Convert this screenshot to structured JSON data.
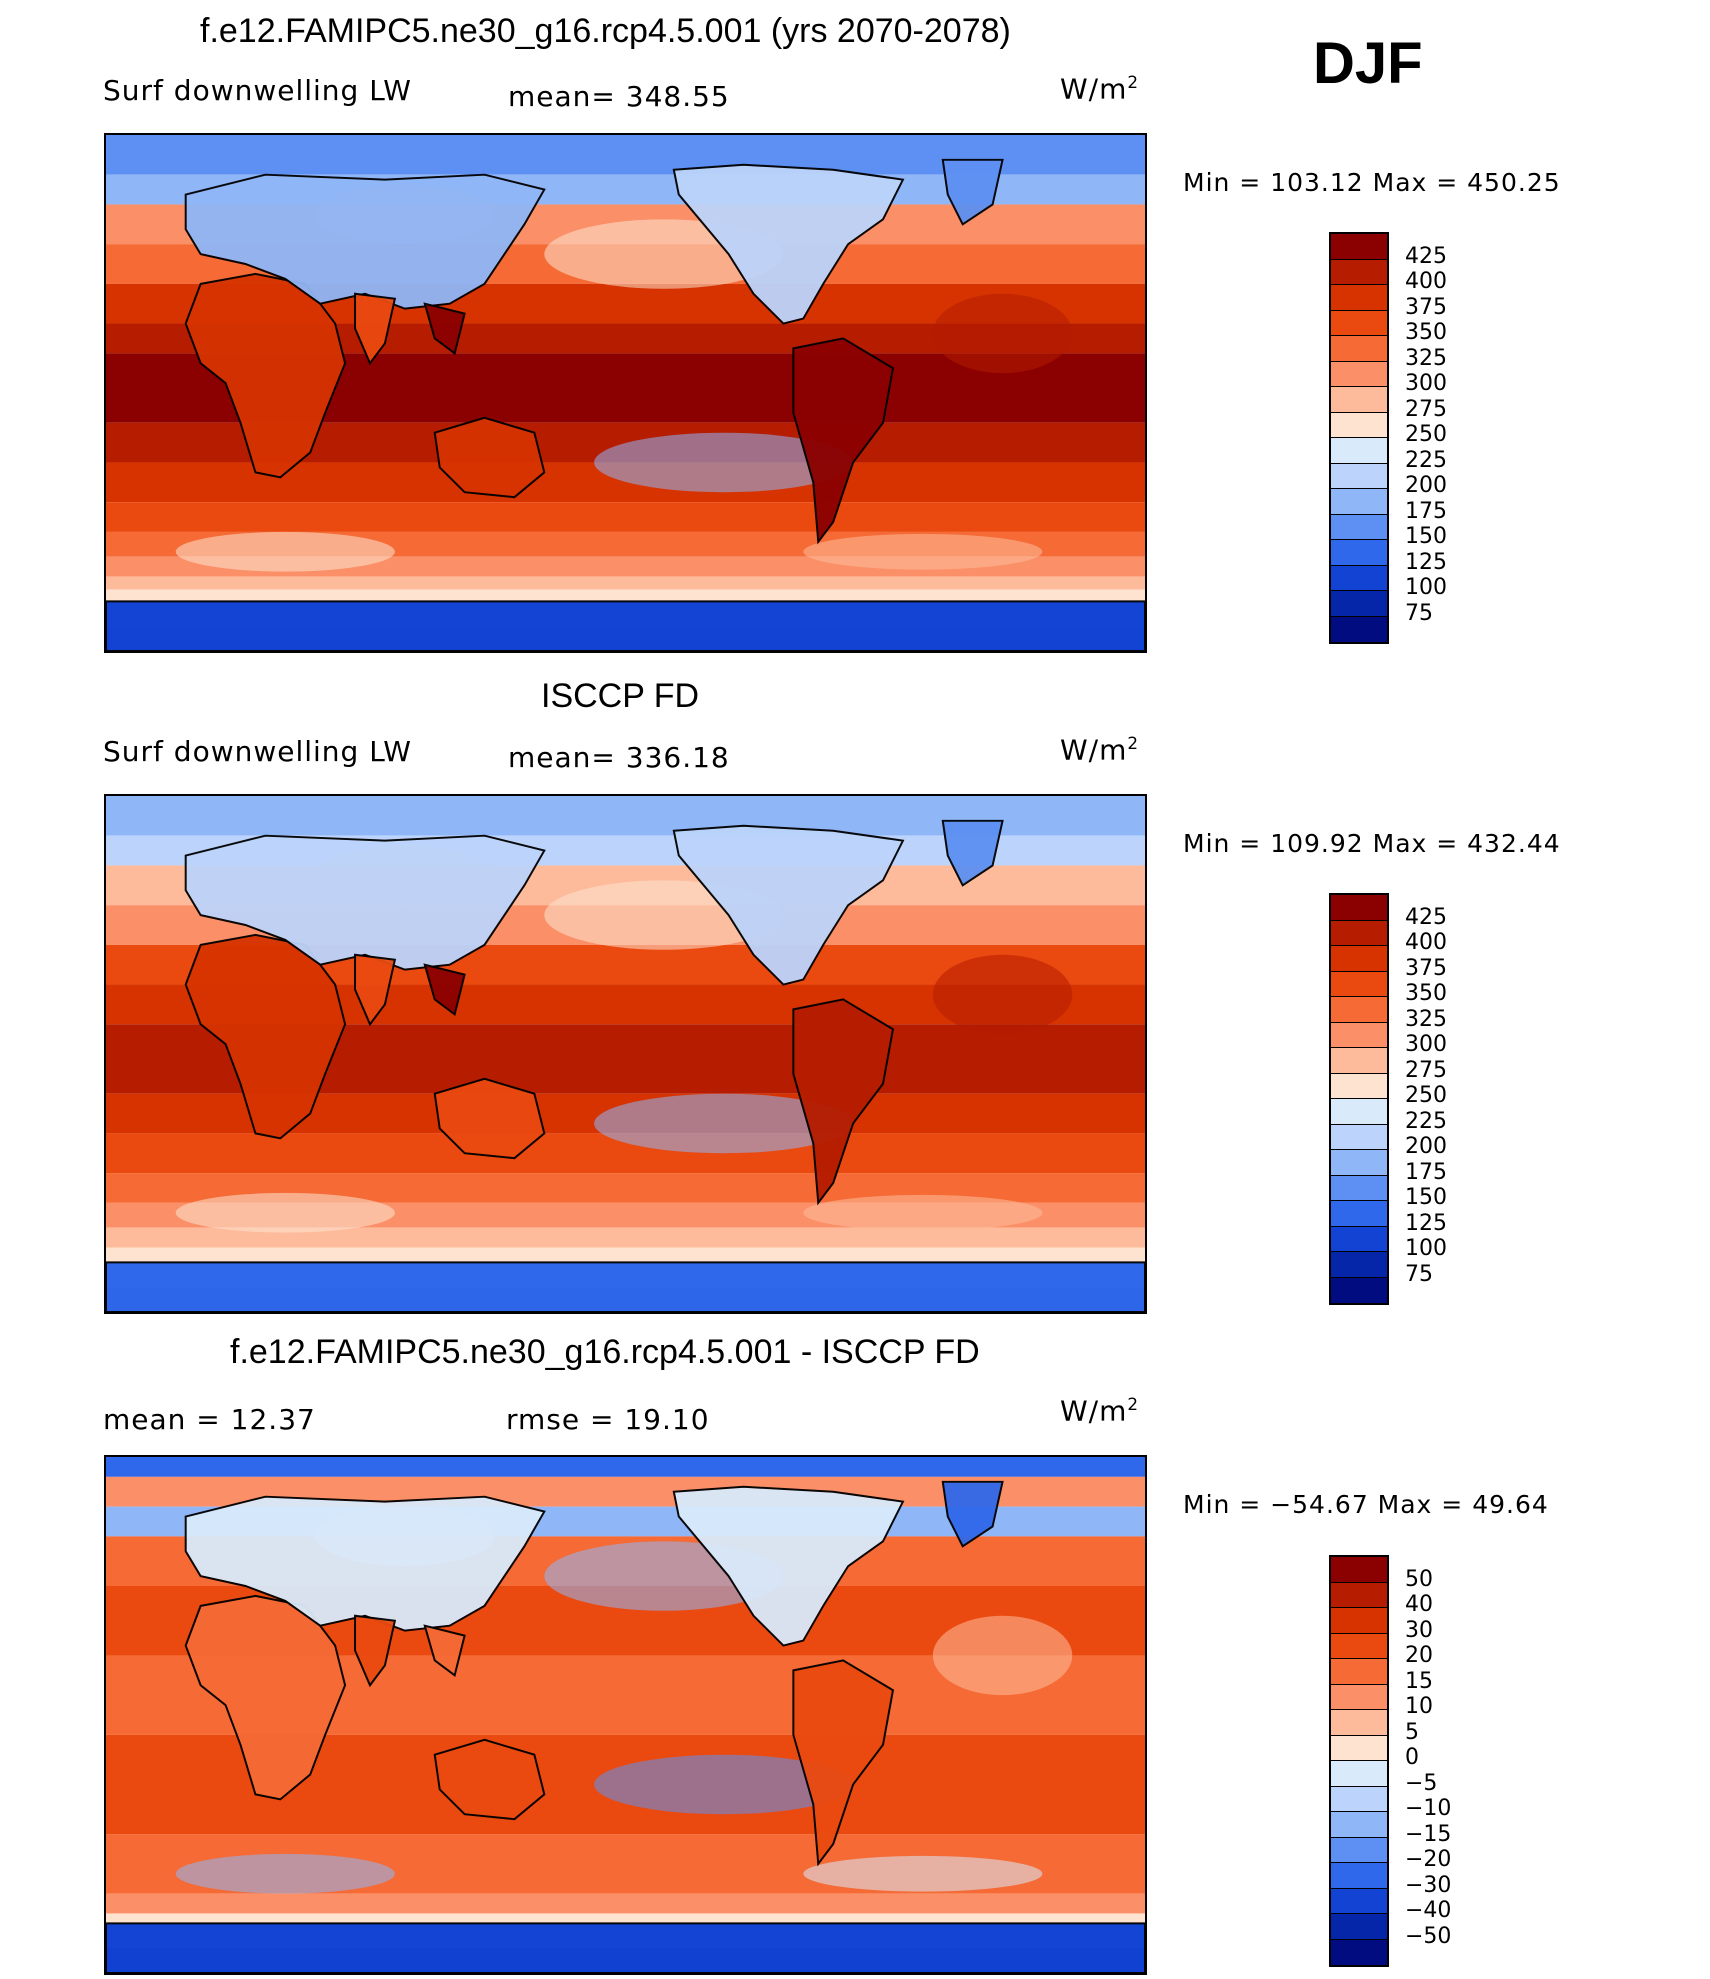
{
  "season": "DJF",
  "panels": [
    {
      "title": "f.e12.FAMIPC5.ne30_g16.rcp4.5.001 (yrs 2070-2078)",
      "left": "Surf  downwelling  LW",
      "center": "mean=  348.55",
      "units": "W/m",
      "units_sup": "2",
      "minmax": "Min  =  103.12  Max  =  450.25",
      "variant": "model",
      "colorbar": {
        "labels": [
          "425",
          "400",
          "375",
          "350",
          "325",
          "300",
          "275",
          "250",
          "225",
          "200",
          "175",
          "150",
          "125",
          "100",
          "75"
        ],
        "colors": [
          "#8b0000",
          "#b51c00",
          "#d63300",
          "#ea4a10",
          "#f56a35",
          "#fb9068",
          "#fdbb9b",
          "#fee4d0",
          "#d9eafb",
          "#bcd4fb",
          "#8fb6f7",
          "#5d90f2",
          "#2f68ea",
          "#1243d3",
          "#0526a8",
          "#000c80"
        ]
      }
    },
    {
      "title": "ISCCP FD",
      "left": "Surf  downwelling  LW",
      "center": "mean=  336.18",
      "units": "W/m",
      "units_sup": "2",
      "minmax": "Min  =  109.92  Max  =  432.44",
      "variant": "obs",
      "colorbar": {
        "labels": [
          "425",
          "400",
          "375",
          "350",
          "325",
          "300",
          "275",
          "250",
          "225",
          "200",
          "175",
          "150",
          "125",
          "100",
          "75"
        ],
        "colors": [
          "#8b0000",
          "#b51c00",
          "#d63300",
          "#ea4a10",
          "#f56a35",
          "#fb9068",
          "#fdbb9b",
          "#fee4d0",
          "#d9eafb",
          "#bcd4fb",
          "#8fb6f7",
          "#5d90f2",
          "#2f68ea",
          "#1243d3",
          "#0526a8",
          "#000c80"
        ]
      }
    },
    {
      "title": "f.e12.FAMIPC5.ne30_g16.rcp4.5.001 - ISCCP FD",
      "left": "mean  =     12.37",
      "center": "rmse  =     19.10",
      "units": "W/m",
      "units_sup": "2",
      "minmax": "Min  = −54.67  Max  =    49.64",
      "variant": "diff",
      "colorbar": {
        "labels": [
          "50",
          "40",
          "30",
          "20",
          "15",
          "10",
          "5",
          "0",
          "−5",
          "−10",
          "−15",
          "−20",
          "−30",
          "−40",
          "−50"
        ],
        "colors": [
          "#8b0000",
          "#b51c00",
          "#d63300",
          "#ea4a10",
          "#f56a35",
          "#fb9068",
          "#fdbb9b",
          "#fee4d0",
          "#d9eafb",
          "#bcd4fb",
          "#8fb6f7",
          "#5d90f2",
          "#2f68ea",
          "#1243d3",
          "#0526a8",
          "#000c80"
        ]
      }
    }
  ]
}
